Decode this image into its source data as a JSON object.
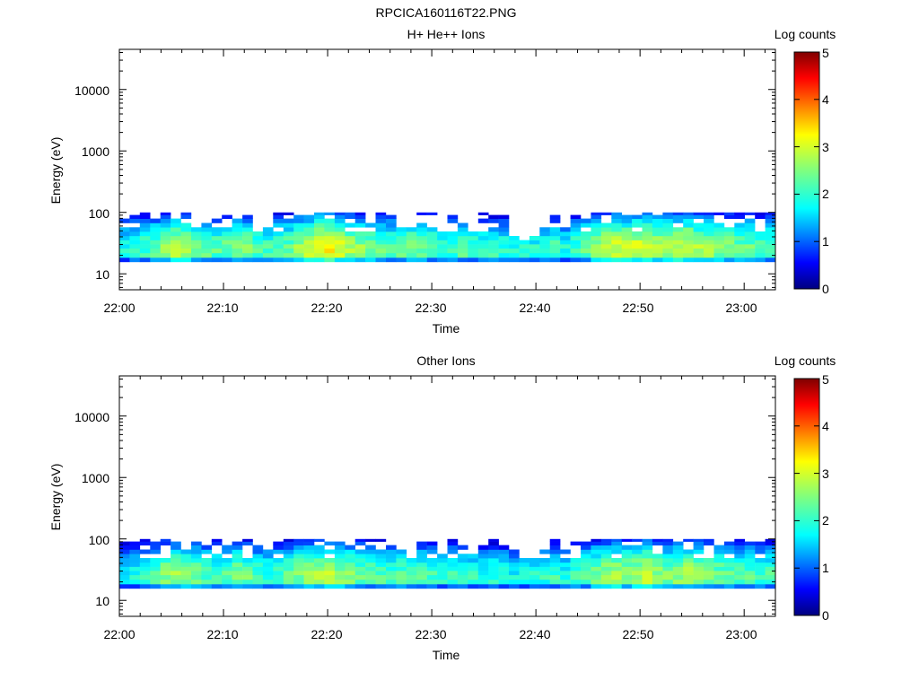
{
  "figure_title": "RPCICA160116T22.PNG",
  "colorbar": {
    "label": "Log counts",
    "ticks": [
      "0",
      "1",
      "2",
      "3",
      "4",
      "5"
    ],
    "min": 0,
    "max": 5,
    "colormap": "jet"
  },
  "chart_data": [
    {
      "type": "heatmap",
      "title": "H+ He++ Ions",
      "xlabel": "Time",
      "ylabel": "Energy (eV)",
      "x_ticks": [
        "22:00",
        "22:10",
        "22:20",
        "22:30",
        "22:40",
        "22:50",
        "23:00"
      ],
      "x_range_minutes": [
        0,
        63
      ],
      "y_scale": "log",
      "y_ticks": [
        "10",
        "100",
        "1000",
        "10000"
      ],
      "y_range": [
        5.5,
        45000
      ],
      "time_bins": 64,
      "energy_bins_eV": [
        17,
        20,
        24,
        28,
        33,
        38,
        45,
        53,
        62,
        73,
        86,
        96
      ],
      "profile_by_time_bin": {
        "peak_log_counts": [
          2.0,
          2.1,
          2.2,
          2.4,
          2.6,
          2.8,
          2.7,
          2.5,
          2.4,
          2.3,
          2.4,
          2.6,
          2.5,
          2.3,
          2.2,
          2.3,
          2.4,
          2.6,
          2.8,
          3.0,
          3.1,
          2.9,
          2.7,
          2.6,
          2.5,
          2.4,
          2.3,
          2.4,
          2.5,
          2.4,
          2.3,
          2.2,
          2.2,
          2.3,
          2.2,
          2.1,
          2.2,
          2.1,
          2.0,
          2.1,
          2.0,
          2.1,
          2.2,
          2.0,
          2.2,
          2.4,
          2.6,
          2.8,
          2.9,
          2.8,
          2.9,
          3.0,
          2.8,
          2.7,
          2.8,
          2.9,
          2.7,
          2.6,
          2.5,
          2.5,
          2.4,
          2.4,
          2.3,
          2.3
        ],
        "max_energy_eV": [
          96,
          86,
          96,
          73,
          96,
          86,
          96,
          73,
          62,
          96,
          86,
          73,
          86,
          62,
          53,
          96,
          96,
          86,
          96,
          96,
          96,
          96,
          96,
          96,
          62,
          96,
          86,
          53,
          53,
          96,
          96,
          45,
          96,
          62,
          53,
          96,
          96,
          96,
          38,
          33,
          38,
          53,
          96,
          62,
          96,
          73,
          96,
          96,
          96,
          86,
          96,
          96,
          96,
          96,
          96,
          96,
          96,
          96,
          96,
          96,
          96,
          96,
          96,
          96
        ]
      }
    },
    {
      "type": "heatmap",
      "title": "Other Ions",
      "xlabel": "Time",
      "ylabel": "Energy (eV)",
      "x_ticks": [
        "22:00",
        "22:10",
        "22:20",
        "22:30",
        "22:40",
        "22:50",
        "23:00"
      ],
      "x_range_minutes": [
        0,
        63
      ],
      "y_scale": "log",
      "y_ticks": [
        "10",
        "100",
        "1000",
        "10000"
      ],
      "y_range": [
        5.5,
        45000
      ],
      "time_bins": 64,
      "energy_bins_eV": [
        17,
        20,
        24,
        28,
        33,
        38,
        45,
        53,
        62,
        73,
        86,
        96
      ],
      "profile_by_time_bin": {
        "peak_log_counts": [
          1.9,
          2.0,
          2.1,
          2.3,
          2.5,
          2.6,
          2.5,
          2.4,
          2.3,
          2.2,
          2.3,
          2.5,
          2.4,
          2.2,
          2.1,
          2.2,
          2.3,
          2.5,
          2.6,
          2.7,
          2.8,
          2.6,
          2.5,
          2.4,
          2.3,
          2.3,
          2.2,
          2.3,
          2.4,
          2.3,
          2.2,
          2.1,
          2.2,
          2.2,
          2.1,
          2.0,
          2.1,
          2.0,
          1.9,
          2.0,
          2.0,
          2.1,
          2.2,
          2.0,
          2.2,
          2.3,
          2.5,
          2.6,
          2.7,
          2.6,
          2.7,
          2.8,
          2.6,
          2.5,
          2.6,
          2.7,
          2.6,
          2.5,
          2.4,
          2.4,
          2.3,
          2.3,
          2.2,
          2.2
        ],
        "max_energy_eV": [
          96,
          86,
          96,
          86,
          96,
          86,
          96,
          86,
          73,
          96,
          86,
          86,
          96,
          73,
          62,
          96,
          96,
          96,
          96,
          96,
          96,
          96,
          96,
          96,
          96,
          96,
          73,
          62,
          53,
          96,
          96,
          53,
          96,
          86,
          53,
          96,
          96,
          96,
          62,
          45,
          45,
          62,
          96,
          62,
          96,
          86,
          96,
          96,
          96,
          96,
          96,
          96,
          96,
          96,
          96,
          96,
          96,
          96,
          96,
          96,
          96,
          96,
          96,
          96
        ]
      }
    }
  ]
}
